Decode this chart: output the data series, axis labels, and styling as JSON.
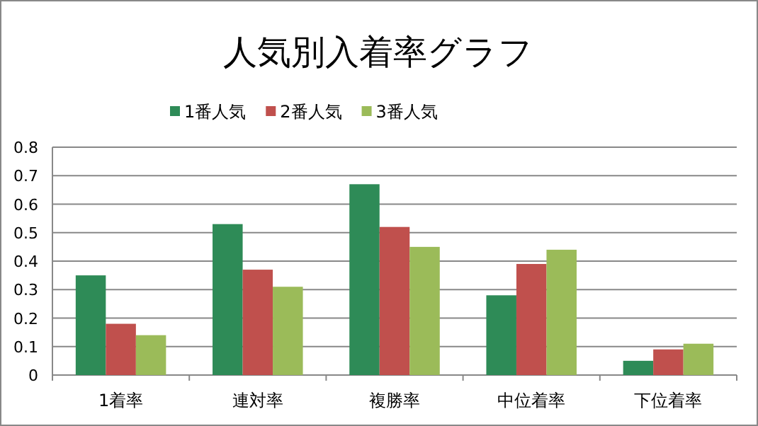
{
  "chart_data": {
    "type": "bar",
    "title": "人気別入着率グラフ",
    "categories": [
      "1着率",
      "連対率",
      "複勝率",
      "中位着率",
      "下位着率"
    ],
    "series": [
      {
        "name": "1番人気",
        "color": "#2e8b57",
        "values": [
          0.35,
          0.53,
          0.67,
          0.28,
          0.05
        ]
      },
      {
        "name": "2番人気",
        "color": "#c0504d",
        "values": [
          0.18,
          0.37,
          0.52,
          0.39,
          0.09
        ]
      },
      {
        "name": "3番人気",
        "color": "#9bbb59",
        "values": [
          0.14,
          0.31,
          0.45,
          0.44,
          0.11
        ]
      }
    ],
    "ylim": [
      0,
      0.8
    ],
    "yticks": [
      0,
      0.1,
      0.2,
      0.3,
      0.4,
      0.5,
      0.6,
      0.7,
      0.8
    ],
    "grid": "y",
    "legend": "top"
  }
}
